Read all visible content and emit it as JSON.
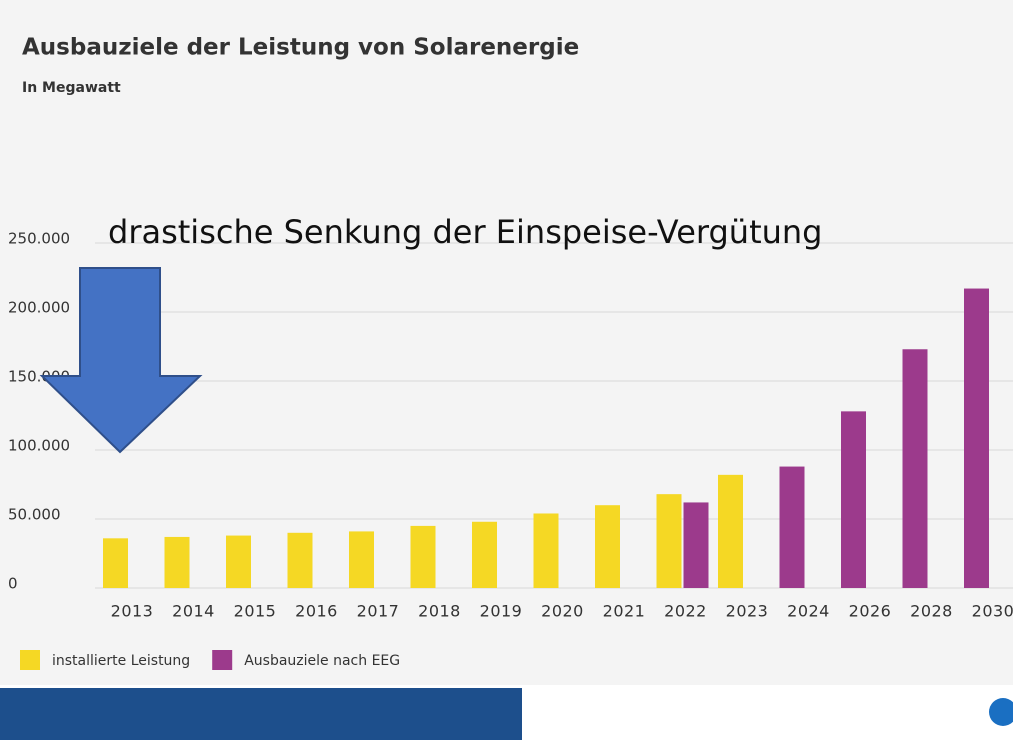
{
  "chart_data": {
    "type": "bar",
    "title": "Ausbauziele der Leistung von Solarenergie",
    "subtitle": "In Megawatt",
    "annotation": "drastische Senkung der Einspeise-Vergütung",
    "categories": [
      "2013",
      "2014",
      "2015",
      "2016",
      "2017",
      "2018",
      "2019",
      "2020",
      "2021",
      "2022",
      "2023",
      "2024",
      "2026",
      "2028",
      "2030"
    ],
    "series": [
      {
        "name": "installierte Leistung",
        "color": "#f5d824",
        "values": [
          36000,
          37000,
          38000,
          40000,
          41000,
          45000,
          48000,
          54000,
          60000,
          68000,
          82000,
          null,
          null,
          null,
          null
        ]
      },
      {
        "name": "Ausbauziele nach EEG",
        "color": "#9c3a8c",
        "values": [
          null,
          null,
          null,
          null,
          null,
          null,
          null,
          null,
          null,
          62000,
          null,
          88000,
          128000,
          173000,
          217000
        ]
      }
    ],
    "ylim": [
      0,
      250000
    ],
    "yticks": [
      0,
      {
        "value": 50000,
        "label": "50.000"
      },
      {
        "value": 100000,
        "label": "100.000"
      },
      {
        "value": 150000,
        "label": "150.000"
      },
      {
        "value": 200000,
        "label": "200.000"
      },
      {
        "value": 250000,
        "label": "250.000"
      }
    ],
    "grid": true
  }
}
